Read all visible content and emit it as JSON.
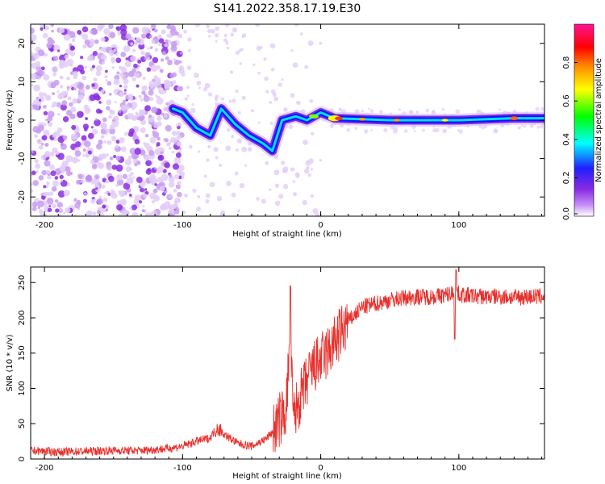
{
  "title": "S141.2022.358.17.19.E30",
  "colors": {
    "snr_line": "#e8302c",
    "axis": "#000000",
    "speckle_light": "#e2cdf7",
    "speckle_mid": "#c79cf0",
    "speckle_dark": "#8a2be2"
  },
  "chart_data": [
    {
      "type": "heatmap",
      "title": "S141.2022.358.17.19.E30",
      "xlabel": "Height of straight line (km)",
      "ylabel": "Frequency (Hz)",
      "xlim": [
        -210,
        162
      ],
      "ylim": [
        -25,
        25
      ],
      "xticks": [
        -200,
        -100,
        0,
        100
      ],
      "yticks": [
        -20,
        -10,
        0,
        10,
        20
      ],
      "grid": false,
      "colorbar": {
        "label": "Normalized spectral amplitude",
        "range": [
          0,
          1
        ],
        "ticks": [
          "0.0",
          "0.2",
          "0.4",
          "0.6",
          "0.8"
        ],
        "colormap": [
          "#ffffff",
          "#9b30ff",
          "#0000ff",
          "#00ffff",
          "#00ff00",
          "#ffff00",
          "#ff7f00",
          "#ff0000",
          "#ff1493"
        ]
      },
      "ridge": {
        "description_points": [
          {
            "x": -107,
            "y": 3
          },
          {
            "x": -100,
            "y": 2
          },
          {
            "x": -90,
            "y": -2
          },
          {
            "x": -80,
            "y": -4
          },
          {
            "x": -72,
            "y": 3
          },
          {
            "x": -62,
            "y": -1
          },
          {
            "x": -52,
            "y": -4
          },
          {
            "x": -42,
            "y": -6
          },
          {
            "x": -35,
            "y": -8
          },
          {
            "x": -28,
            "y": 0
          },
          {
            "x": -18,
            "y": 1
          },
          {
            "x": -10,
            "y": 0
          },
          {
            "x": 0,
            "y": 2
          },
          {
            "x": 10,
            "y": 0.5
          },
          {
            "x": 50,
            "y": 0
          },
          {
            "x": 100,
            "y": 0
          },
          {
            "x": 140,
            "y": 0.5
          },
          {
            "x": 162,
            "y": 0.5
          }
        ],
        "peak_amplitude_near_x": 10
      }
    },
    {
      "type": "line",
      "xlabel": "Height of straight line (km)",
      "ylabel": "SNR (10 * v/v)",
      "xlim": [
        -210,
        162
      ],
      "ylim": [
        0,
        272
      ],
      "xticks": [
        -200,
        -100,
        0,
        100
      ],
      "yticks": [
        0,
        50,
        100,
        150,
        200,
        250
      ],
      "grid": false,
      "series": [
        {
          "x": [
            -210,
            -190,
            -170,
            -150,
            -130,
            -110,
            -100,
            -90,
            -80,
            -75,
            -70,
            -60,
            -50,
            -40,
            -35,
            -30,
            -25,
            -22,
            -20,
            -15,
            -10,
            -5,
            0,
            5,
            10,
            15,
            20,
            30,
            40,
            50,
            60,
            70,
            80,
            90,
            95,
            98,
            100,
            105,
            110,
            120,
            130,
            140,
            150,
            162
          ],
          "y": [
            12,
            10,
            11,
            12,
            12,
            15,
            18,
            25,
            30,
            45,
            35,
            22,
            18,
            28,
            38,
            55,
            70,
            180,
            60,
            85,
            110,
            130,
            140,
            150,
            165,
            180,
            195,
            215,
            220,
            225,
            228,
            230,
            230,
            232,
            235,
            240,
            233,
            232,
            231,
            230,
            230,
            229,
            230,
            230
          ]
        }
      ],
      "annotations": [
        {
          "x": -22,
          "y": 245,
          "text": ""
        },
        {
          "x": 98,
          "y": 265,
          "text": ""
        }
      ]
    }
  ]
}
